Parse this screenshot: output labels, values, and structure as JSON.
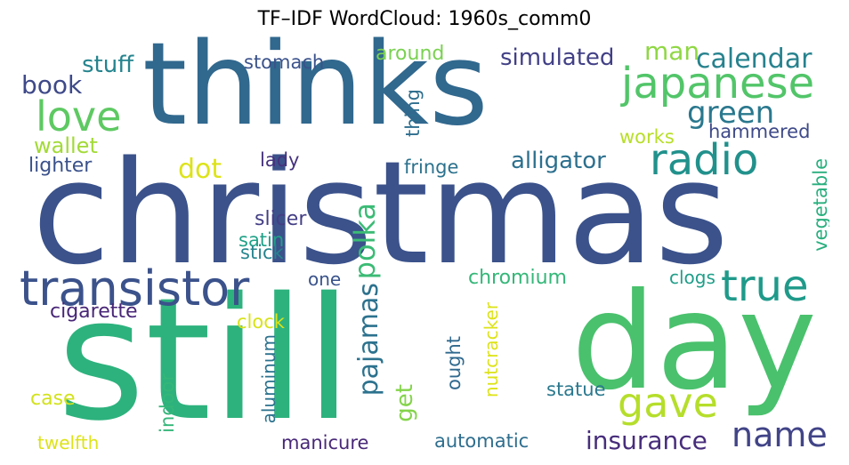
{
  "title": "TF–IDF WordCloud: 1960s_comm0",
  "words": [
    {
      "text": "christmas",
      "color": "#3b528b"
    },
    {
      "text": "thinks",
      "color": "#31688e"
    },
    {
      "text": "still",
      "color": "#2db27d"
    },
    {
      "text": "day",
      "color": "#4ac16d"
    },
    {
      "text": "transistor",
      "color": "#3b528b"
    },
    {
      "text": "japanese",
      "color": "#52c569"
    },
    {
      "text": "love",
      "color": "#5ec962"
    },
    {
      "text": "radio",
      "color": "#21918c"
    },
    {
      "text": "true",
      "color": "#1f9a8a"
    },
    {
      "text": "gave",
      "color": "#b5de2b"
    },
    {
      "text": "name",
      "color": "#414487"
    },
    {
      "text": "green",
      "color": "#2a788e"
    },
    {
      "text": "calendar",
      "color": "#26828e"
    },
    {
      "text": "man",
      "color": "#8fd744"
    },
    {
      "text": "book",
      "color": "#3e4989"
    },
    {
      "text": "dot",
      "color": "#dde318"
    },
    {
      "text": "polka",
      "color": "#3bbb75"
    },
    {
      "text": "pajamas",
      "color": "#2c728e"
    },
    {
      "text": "insurance",
      "color": "#472d7b"
    },
    {
      "text": "simulated",
      "color": "#424086"
    },
    {
      "text": "alligator",
      "color": "#2d708e"
    },
    {
      "text": "stuff",
      "color": "#25848e"
    },
    {
      "text": "wallet",
      "color": "#a2da37"
    },
    {
      "text": "stomach",
      "color": "#3b528b"
    },
    {
      "text": "around",
      "color": "#7ad151"
    },
    {
      "text": "hammered",
      "color": "#3e4a89"
    },
    {
      "text": "works",
      "color": "#b8de29"
    },
    {
      "text": "lighter",
      "color": "#3b528b"
    },
    {
      "text": "lady",
      "color": "#46327e"
    },
    {
      "text": "fringe",
      "color": "#2c728e"
    },
    {
      "text": "thing",
      "color": "#2e6e8e"
    },
    {
      "text": "slicer",
      "color": "#433e85"
    },
    {
      "text": "satin",
      "color": "#1fa187"
    },
    {
      "text": "stick",
      "color": "#25858e"
    },
    {
      "text": "vegetable",
      "color": "#29af7f"
    },
    {
      "text": "one",
      "color": "#3a538b"
    },
    {
      "text": "chromium",
      "color": "#35b779"
    },
    {
      "text": "clogs",
      "color": "#1f9e89"
    },
    {
      "text": "cigarette",
      "color": "#482677"
    },
    {
      "text": "clock",
      "color": "#d8e219"
    },
    {
      "text": "ought",
      "color": "#30698e"
    },
    {
      "text": "get",
      "color": "#84d44b"
    },
    {
      "text": "nutcracker",
      "color": "#dde318"
    },
    {
      "text": "statue",
      "color": "#2a788e"
    },
    {
      "text": "case",
      "color": "#d2e21b"
    },
    {
      "text": "aluminum",
      "color": "#2c728e"
    },
    {
      "text": "indoor",
      "color": "#34b679"
    },
    {
      "text": "twelfth",
      "color": "#dde318"
    },
    {
      "text": "manicure",
      "color": "#482878"
    },
    {
      "text": "automatic",
      "color": "#2e6e8e"
    }
  ]
}
